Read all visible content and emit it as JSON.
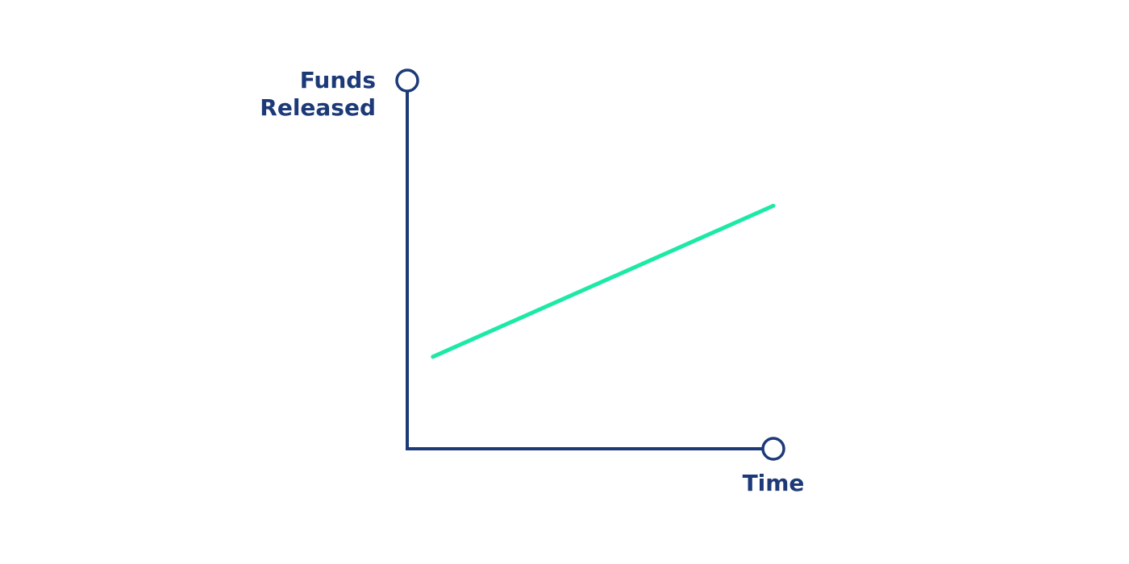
{
  "chart_data": {
    "type": "line",
    "title": "",
    "xlabel": "Time",
    "ylabel_lines": [
      "Funds",
      "Released"
    ],
    "x": [
      0.07,
      1.0
    ],
    "series": [
      {
        "values": [
          0.25,
          0.66
        ]
      }
    ],
    "xlim": [
      0,
      1
    ],
    "ylim": [
      0,
      1
    ],
    "grid": false,
    "ticks": false,
    "legend": "none",
    "colors": {
      "axis": "#1d3a78",
      "series": [
        "#1de9a6"
      ]
    }
  }
}
